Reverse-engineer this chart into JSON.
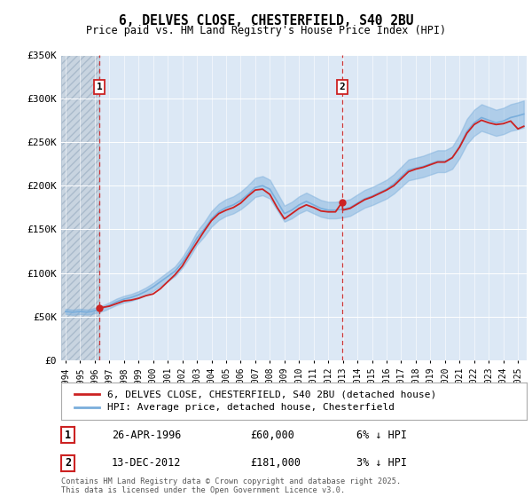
{
  "title1": "6, DELVES CLOSE, CHESTERFIELD, S40 2BU",
  "title2": "Price paid vs. HM Land Registry's House Price Index (HPI)",
  "ylim": [
    0,
    350000
  ],
  "yticks": [
    0,
    50000,
    100000,
    150000,
    200000,
    250000,
    300000,
    350000
  ],
  "ytick_labels": [
    "£0",
    "£50K",
    "£100K",
    "£150K",
    "£200K",
    "£250K",
    "£300K",
    "£350K"
  ],
  "plot_bg": "#dce8f5",
  "hatch_bg": "#d0d8e0",
  "hpi_color": "#7aaedc",
  "hpi_band_alpha": 0.45,
  "price_color": "#cc2222",
  "sale1_date": 1996.32,
  "sale1_price": 60000,
  "sale2_date": 2012.95,
  "sale2_price": 181000,
  "legend1": "6, DELVES CLOSE, CHESTERFIELD, S40 2BU (detached house)",
  "legend2": "HPI: Average price, detached house, Chesterfield",
  "table_entries": [
    {
      "num": "1",
      "date": "26-APR-1996",
      "price": "£60,000",
      "hpi": "6% ↓ HPI"
    },
    {
      "num": "2",
      "date": "13-DEC-2012",
      "price": "£181,000",
      "hpi": "3% ↓ HPI"
    }
  ],
  "footer": "Contains HM Land Registry data © Crown copyright and database right 2025.\nThis data is licensed under the Open Government Licence v3.0.",
  "hpi_data": [
    [
      1994.0,
      56000
    ],
    [
      1994.25,
      55500
    ],
    [
      1994.5,
      55000
    ],
    [
      1994.75,
      55500
    ],
    [
      1995.0,
      56000
    ],
    [
      1995.25,
      55500
    ],
    [
      1995.5,
      55200
    ],
    [
      1995.75,
      55800
    ],
    [
      1996.0,
      57000
    ],
    [
      1996.25,
      58000
    ],
    [
      1996.5,
      59500
    ],
    [
      1996.75,
      61000
    ],
    [
      1997.0,
      63000
    ],
    [
      1997.5,
      67000
    ],
    [
      1998.0,
      70000
    ],
    [
      1998.5,
      72000
    ],
    [
      1999.0,
      75000
    ],
    [
      1999.5,
      79000
    ],
    [
      2000.0,
      84000
    ],
    [
      2000.5,
      90000
    ],
    [
      2001.0,
      96000
    ],
    [
      2001.5,
      102000
    ],
    [
      2002.0,
      112000
    ],
    [
      2002.5,
      125000
    ],
    [
      2003.0,
      140000
    ],
    [
      2003.5,
      150000
    ],
    [
      2004.0,
      162000
    ],
    [
      2004.5,
      170000
    ],
    [
      2005.0,
      175000
    ],
    [
      2005.5,
      178000
    ],
    [
      2006.0,
      183000
    ],
    [
      2006.5,
      190000
    ],
    [
      2007.0,
      198000
    ],
    [
      2007.5,
      200000
    ],
    [
      2008.0,
      196000
    ],
    [
      2008.5,
      182000
    ],
    [
      2009.0,
      168000
    ],
    [
      2009.5,
      172000
    ],
    [
      2010.0,
      178000
    ],
    [
      2010.5,
      182000
    ],
    [
      2011.0,
      178000
    ],
    [
      2011.5,
      174000
    ],
    [
      2012.0,
      172000
    ],
    [
      2012.5,
      172000
    ],
    [
      2013.0,
      173000
    ],
    [
      2013.5,
      175000
    ],
    [
      2014.0,
      180000
    ],
    [
      2014.5,
      185000
    ],
    [
      2015.0,
      188000
    ],
    [
      2015.5,
      192000
    ],
    [
      2016.0,
      196000
    ],
    [
      2016.5,
      202000
    ],
    [
      2017.0,
      210000
    ],
    [
      2017.5,
      218000
    ],
    [
      2018.0,
      220000
    ],
    [
      2018.5,
      222000
    ],
    [
      2019.0,
      225000
    ],
    [
      2019.5,
      228000
    ],
    [
      2020.0,
      228000
    ],
    [
      2020.5,
      232000
    ],
    [
      2021.0,
      245000
    ],
    [
      2021.5,
      262000
    ],
    [
      2022.0,
      272000
    ],
    [
      2022.5,
      278000
    ],
    [
      2023.0,
      275000
    ],
    [
      2023.5,
      272000
    ],
    [
      2024.0,
      274000
    ],
    [
      2024.5,
      278000
    ],
    [
      2025.0,
      280000
    ],
    [
      2025.4,
      282000
    ]
  ],
  "price_data": [
    [
      1996.32,
      60000
    ],
    [
      2012.95,
      181000
    ]
  ],
  "price_line_data": [
    [
      1996.32,
      60000
    ],
    [
      1997.0,
      62000
    ],
    [
      1997.5,
      65000
    ],
    [
      1998.0,
      68000
    ],
    [
      1998.5,
      69000
    ],
    [
      1999.0,
      71000
    ],
    [
      1999.5,
      74000
    ],
    [
      2000.0,
      76000
    ],
    [
      2000.5,
      82000
    ],
    [
      2001.0,
      90000
    ],
    [
      2001.5,
      98000
    ],
    [
      2002.0,
      108000
    ],
    [
      2002.5,
      122000
    ],
    [
      2003.0,
      135000
    ],
    [
      2003.5,
      148000
    ],
    [
      2004.0,
      160000
    ],
    [
      2004.5,
      168000
    ],
    [
      2005.0,
      172000
    ],
    [
      2005.5,
      175000
    ],
    [
      2006.0,
      180000
    ],
    [
      2006.5,
      188000
    ],
    [
      2007.0,
      195000
    ],
    [
      2007.5,
      196000
    ],
    [
      2008.0,
      190000
    ],
    [
      2008.5,
      175000
    ],
    [
      2009.0,
      162000
    ],
    [
      2009.5,
      168000
    ],
    [
      2010.0,
      174000
    ],
    [
      2010.5,
      178000
    ],
    [
      2011.0,
      175000
    ],
    [
      2011.5,
      171000
    ],
    [
      2012.0,
      170000
    ],
    [
      2012.5,
      170000
    ],
    [
      2012.95,
      181000
    ],
    [
      2013.0,
      172000
    ],
    [
      2013.5,
      174000
    ],
    [
      2014.0,
      179000
    ],
    [
      2014.5,
      184000
    ],
    [
      2015.0,
      187000
    ],
    [
      2015.5,
      191000
    ],
    [
      2016.0,
      195000
    ],
    [
      2016.5,
      200000
    ],
    [
      2017.0,
      208000
    ],
    [
      2017.5,
      216000
    ],
    [
      2018.0,
      219000
    ],
    [
      2018.5,
      221000
    ],
    [
      2019.0,
      224000
    ],
    [
      2019.5,
      227000
    ],
    [
      2020.0,
      227000
    ],
    [
      2020.5,
      232000
    ],
    [
      2021.0,
      244000
    ],
    [
      2021.5,
      260000
    ],
    [
      2022.0,
      270000
    ],
    [
      2022.5,
      275000
    ],
    [
      2023.0,
      272000
    ],
    [
      2023.5,
      270000
    ],
    [
      2024.0,
      271000
    ],
    [
      2024.5,
      274000
    ],
    [
      2025.0,
      265000
    ],
    [
      2025.4,
      268000
    ]
  ],
  "xmin": 1993.7,
  "xmax": 2025.6
}
